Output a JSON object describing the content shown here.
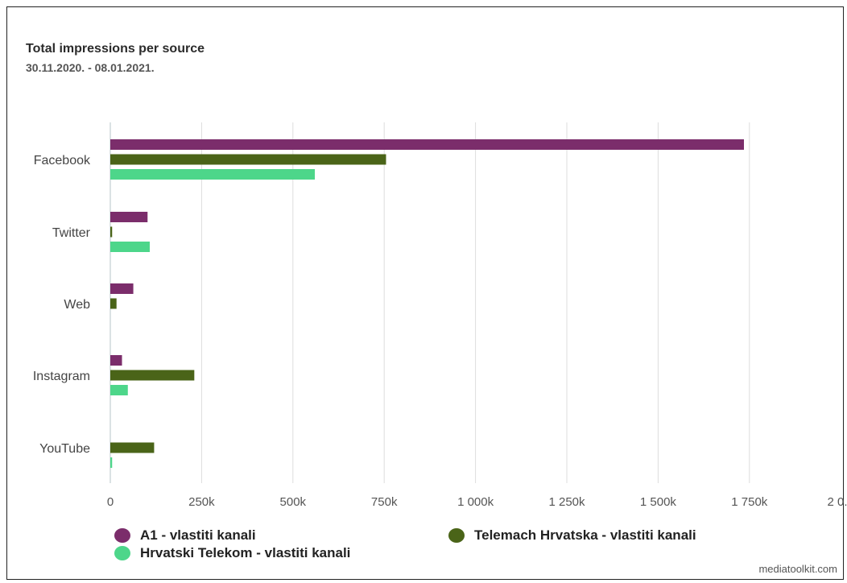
{
  "chart_data": {
    "type": "bar",
    "orientation": "horizontal",
    "title": "Total impressions per source",
    "subtitle": "30.11.2020. - 08.01.2021.",
    "categories": [
      "Facebook",
      "Twitter",
      "Web",
      "Instagram",
      "YouTube"
    ],
    "series": [
      {
        "name": "A1 - vlastiti kanali",
        "color": "#7b2d6b",
        "values": [
          1735000,
          102000,
          63000,
          32000,
          0
        ]
      },
      {
        "name": "Telemach Hrvatska - vlastiti kanali",
        "color": "#4a6418",
        "values": [
          755000,
          5000,
          17000,
          230000,
          120000
        ]
      },
      {
        "name": "Hrvatski Telekom - vlastiti kanali",
        "color": "#4dd68a",
        "values": [
          560000,
          108000,
          0,
          48000,
          5000
        ]
      }
    ],
    "xticks": [
      "0",
      "250k",
      "500k",
      "750k",
      "1 000k",
      "1 250k",
      "1 500k",
      "1 750k",
      "2 0..."
    ],
    "xlim": [
      0,
      2000000
    ],
    "grid": true,
    "legend_position": "bottom"
  },
  "credit": "mediatoolkit.com"
}
